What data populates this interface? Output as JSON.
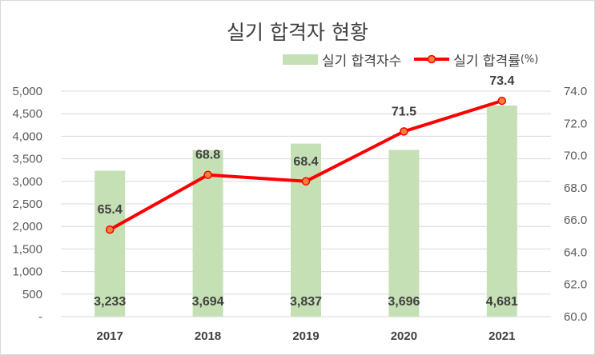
{
  "chart_data": {
    "type": "bar",
    "title": "실기 합격자 현황",
    "categories": [
      "2017",
      "2018",
      "2019",
      "2020",
      "2021"
    ],
    "series": [
      {
        "name": "실기 합격자수",
        "type": "bar",
        "axis": "left",
        "color": "#c5e0b4",
        "values": [
          3233,
          3694,
          3837,
          3696,
          4681
        ],
        "labels": [
          "3,233",
          "3,694",
          "3,837",
          "3,696",
          "4,681"
        ]
      },
      {
        "name": "실기 합격률",
        "name_suffix": "(%)",
        "type": "line",
        "axis": "right",
        "color": "#ff0000",
        "marker_color": "#f4813a",
        "values": [
          65.4,
          68.8,
          68.4,
          71.5,
          73.4
        ],
        "labels": [
          "65.4",
          "68.8",
          "68.4",
          "71.5",
          "73.4"
        ]
      }
    ],
    "y_left": {
      "range": [
        0,
        5000
      ],
      "ticks": [
        5000,
        4500,
        4000,
        3500,
        3000,
        2500,
        2000,
        1500,
        1000,
        500,
        0
      ],
      "tick_labels": [
        "5,000",
        "4,500",
        "4,000",
        "3,500",
        "3,000",
        "2,500",
        "2,000",
        "1,500",
        "1,000",
        "500",
        "-"
      ]
    },
    "y_right": {
      "range": [
        60,
        74
      ],
      "ticks": [
        74,
        72,
        70,
        68,
        66,
        64,
        62,
        60
      ],
      "tick_labels": [
        "74.0",
        "72.0",
        "70.0",
        "68.0",
        "66.0",
        "64.0",
        "62.0",
        "60.0"
      ]
    },
    "grid": true,
    "legend_position": "top-right"
  }
}
